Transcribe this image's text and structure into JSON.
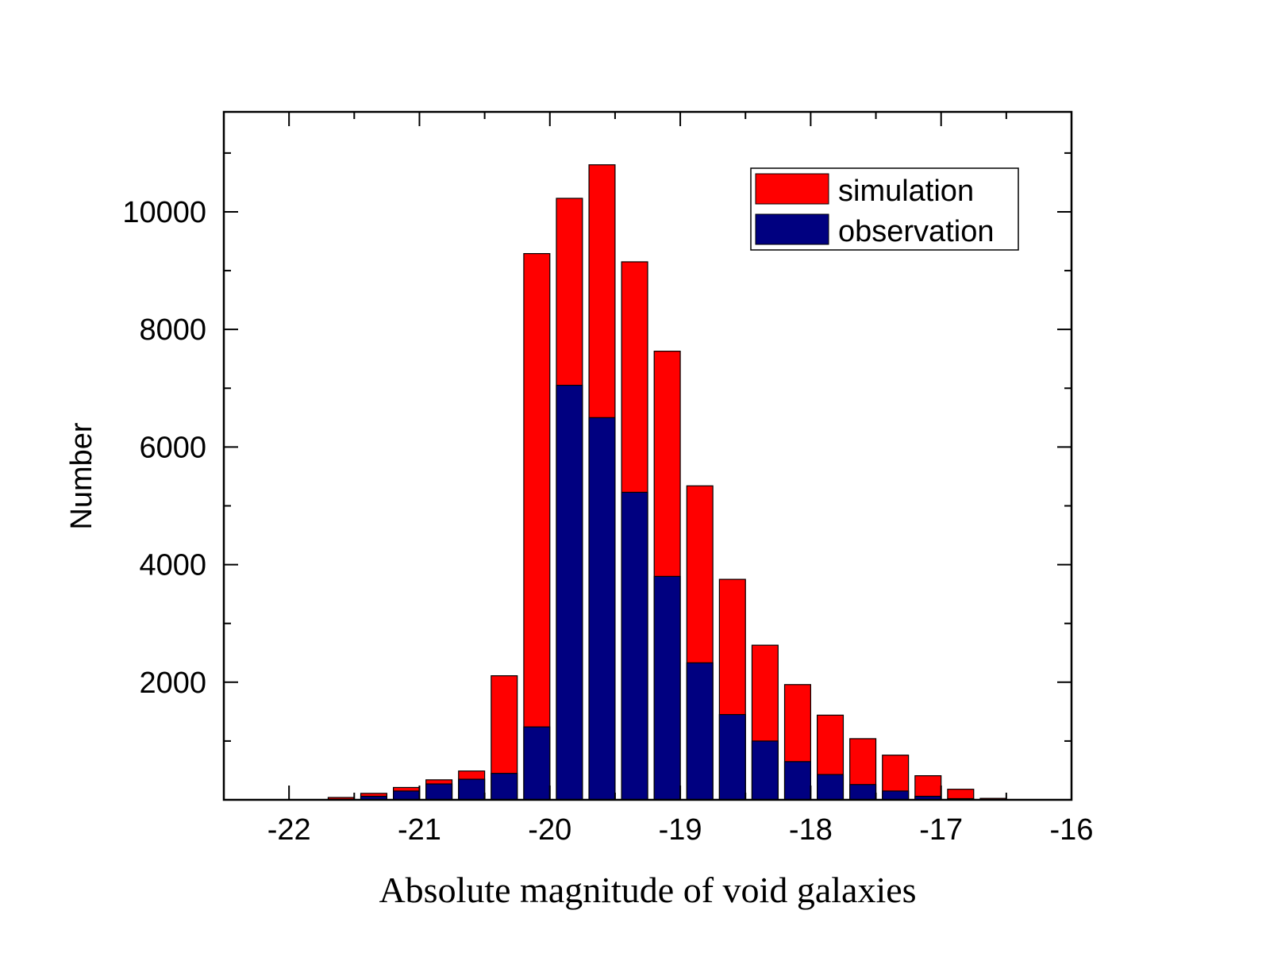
{
  "chart_data": {
    "type": "bar",
    "title": "",
    "xlabel": "Absolute magnitude of void galaxies",
    "ylabel": "Number",
    "xlim": [
      -22.5,
      -16
    ],
    "ylim": [
      0,
      11700
    ],
    "x_ticks": [
      -22,
      -21,
      -20,
      -19,
      -18,
      -17,
      -16
    ],
    "x_tick_labels": [
      "-22",
      "-21",
      "-20",
      "-19",
      "-18",
      "-17",
      "-16"
    ],
    "y_ticks": [
      2000,
      4000,
      6000,
      8000,
      10000
    ],
    "y_tick_labels": [
      "2000",
      "4000",
      "6000",
      "8000",
      "10000"
    ],
    "bin_centers": [
      -21.6,
      -21.35,
      -21.1,
      -20.85,
      -20.6,
      -20.35,
      -20.1,
      -19.85,
      -19.6,
      -19.35,
      -19.1,
      -18.85,
      -18.6,
      -18.35,
      -18.1,
      -17.85,
      -17.6,
      -17.35,
      -17.1,
      -16.85,
      -16.6
    ],
    "bar_width": 0.2,
    "series": [
      {
        "name": "simulation",
        "color": "#ff0000",
        "values": [
          40,
          110,
          210,
          340,
          490,
          2110,
          9290,
          10230,
          10800,
          9150,
          7630,
          5340,
          3750,
          2630,
          1960,
          1440,
          1040,
          760,
          410,
          180,
          25
        ]
      },
      {
        "name": "observation",
        "color": "#000080",
        "values": [
          10,
          60,
          150,
          270,
          350,
          450,
          1240,
          7050,
          6500,
          5230,
          3800,
          2330,
          1450,
          1000,
          650,
          430,
          260,
          150,
          60,
          20,
          5
        ]
      }
    ],
    "legend": {
      "position": "top-right",
      "entries": [
        "simulation",
        "observation"
      ]
    }
  }
}
